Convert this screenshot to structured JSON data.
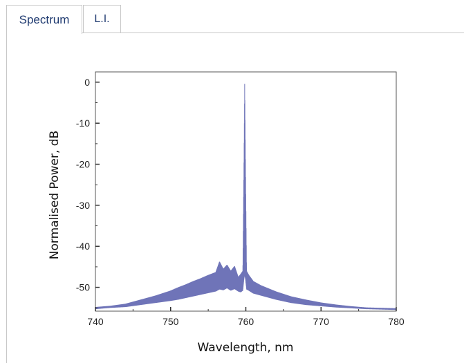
{
  "tabs": [
    {
      "label": "Spectrum",
      "active": true
    },
    {
      "label": "L.I.",
      "active": false
    }
  ],
  "chart_data": {
    "type": "line",
    "title": "",
    "xlabel": "Wavelength, nm",
    "ylabel": "Normalised Power, dB",
    "xlim": [
      740,
      780
    ],
    "ylim": [
      -55.8,
      2.5
    ],
    "xticks": [
      740,
      750,
      760,
      770,
      780
    ],
    "yticks": [
      0,
      -10,
      -20,
      -30,
      -40,
      -50
    ],
    "grid": false,
    "legend": "none",
    "line_color": "#6f74b8",
    "series": [
      {
        "x": [
          740,
          742,
          744,
          746,
          748,
          750,
          751,
          752,
          753,
          754,
          755,
          756,
          756.5,
          757,
          757.5,
          758,
          758.5,
          759,
          759.3,
          759.6,
          759.75,
          759.85,
          759.95,
          760.1,
          760.4,
          761,
          762,
          764,
          766,
          768,
          770,
          772,
          774,
          776,
          778,
          780
        ],
        "upper": [
          -54.8,
          -54.5,
          -54.0,
          -53.0,
          -52.0,
          -50.8,
          -50.0,
          -49.3,
          -48.5,
          -47.8,
          -47.0,
          -46.3,
          -43.7,
          -45.5,
          -44.5,
          -46.0,
          -44.8,
          -47.5,
          -46.8,
          -46.0,
          -20.0,
          0.0,
          -20.0,
          -46.0,
          -47.0,
          -48.5,
          -49.5,
          -51.0,
          -52.2,
          -53.0,
          -53.7,
          -54.2,
          -54.6,
          -54.9,
          -55.0,
          -55.1
        ],
        "lower": [
          -55.3,
          -55.0,
          -54.8,
          -54.3,
          -53.8,
          -53.3,
          -53.0,
          -52.6,
          -52.2,
          -51.8,
          -51.4,
          -51.0,
          -50.5,
          -50.7,
          -50.2,
          -50.8,
          -50.4,
          -51.0,
          -51.2,
          -50.8,
          -48.0,
          -47.0,
          -48.0,
          -50.5,
          -50.8,
          -51.5,
          -52.0,
          -53.0,
          -53.8,
          -54.3,
          -54.6,
          -54.9,
          -55.1,
          -55.3,
          -55.4,
          -55.5
        ]
      }
    ]
  }
}
